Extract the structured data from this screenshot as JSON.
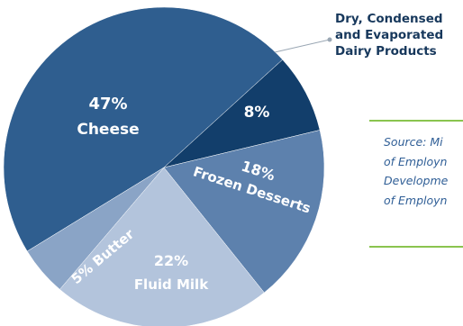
{
  "chart_data": {
    "type": "pie",
    "slices": [
      {
        "label": "Cheese",
        "value": 47,
        "value_label": "47%",
        "color": "#2f5e8f"
      },
      {
        "label": "Dry, Condensed and Evaporated Dairy Products",
        "value": 8,
        "value_label": "8%",
        "color": "#123e6b"
      },
      {
        "label": "Frozen Desserts",
        "value": 18,
        "value_label": "18%",
        "color": "#5d81ad"
      },
      {
        "label": "Fluid Milk",
        "value": 22,
        "value_label": "22%",
        "color": "#b3c4dc"
      },
      {
        "label": "Butter",
        "value": 5,
        "value_label": "5% Butter",
        "color": "#8aa4c6"
      }
    ],
    "callout": "Dry, Condensed\nand Evaporated\nDairy Products",
    "source_lines": [
      "Source: Mi",
      "of Employn",
      "Developme",
      "of Employn"
    ]
  }
}
